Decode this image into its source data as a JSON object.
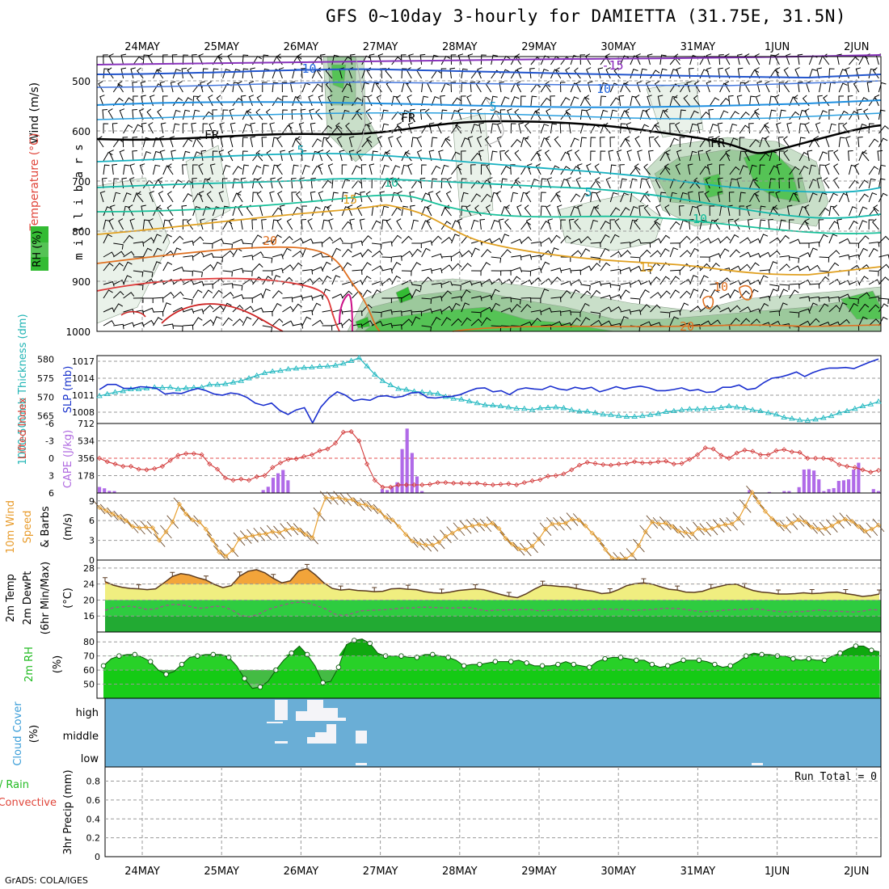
{
  "title": "GFS 0~10day 3-hourly for DAMIETTA (31.75E, 31.5N)",
  "credit": "GrADS: COLA/IGES",
  "colors": {
    "wind_lbl": "#000000",
    "temp_lbl": "#e0453a",
    "rh_lbl": "#22bb22",
    "thick_lbl": "#22b5b5",
    "slp_lbl": "#1a33cc",
    "lifted_lbl": "#e0453a",
    "cape_lbl": "#b06ae0",
    "wind10_lbl": "#e89b2a",
    "cloud_lbl": "#3a9dd8",
    "precip_rain_lbl": "#22bb22",
    "precip_conv_lbl": "#e0453a",
    "slp_line": "#1a2fcf",
    "thick_line": "#22b8c0",
    "cape_bar": "#b06ae8",
    "lifted_line": "#d23a3a",
    "wind_speed_line": "#e8a030",
    "temp_fill": "#f2a43a",
    "dew_fill": "#22bb22",
    "rh_fill": "#11cc11",
    "cloud_bg": "#6aaed6",
    "cloud_fill": "#f4f4f8"
  },
  "chart_data": {
    "type": "line",
    "x_dates": [
      "24MAY",
      "25MAY",
      "26MAY",
      "27MAY",
      "28MAY",
      "29MAY",
      "30MAY",
      "31MAY",
      "1JUN",
      "2JUN"
    ],
    "upper_air": {
      "title": "Upper air",
      "y_label": "m i l l i b a r s",
      "y_label_rh": "RH (%)",
      "y_label_temp": "Temperature (°C)",
      "y_label_wind": "Wind (m/s)",
      "pressure_ticks": [
        "500",
        "600",
        "700",
        "800",
        "900",
        "1000"
      ],
      "contour_labels": [
        {
          "text": "-10",
          "color": "#2266dd"
        },
        {
          "text": "-15",
          "color": "#8822bb"
        },
        {
          "text": "10",
          "color": "#2266dd"
        },
        {
          "text": "5",
          "color": "#1199cc"
        },
        {
          "text": "FR",
          "color": "#000000"
        },
        {
          "text": "FR",
          "color": "#000000"
        },
        {
          "text": "FR",
          "color": "#000000"
        },
        {
          "text": "5",
          "color": "#11aabb"
        },
        {
          "text": "10",
          "color": "#11bb99"
        },
        {
          "text": "5",
          "color": "#11aabb"
        },
        {
          "text": "10",
          "color": "#11bb99"
        },
        {
          "text": "15",
          "color": "#e0a020"
        },
        {
          "text": "20",
          "color": "#e07020"
        },
        {
          "text": "15",
          "color": "#e0a020"
        },
        {
          "text": "10",
          "color": "#e07020"
        },
        {
          "text": "20",
          "color": "#e07020"
        }
      ]
    },
    "slp_thickness": {
      "y_label_thick": "1000-500mb Thickness (dm)",
      "y_label_slp": "SLP (mb)",
      "thick_ticks": [
        "580",
        "575",
        "570",
        "565"
      ],
      "slp_ticks": [
        "1017",
        "1014",
        "1011",
        "1008"
      ],
      "slp_range": [
        1006,
        1018
      ],
      "thick_range": [
        563,
        581
      ],
      "slp": [
        1012.0,
        1012.9,
        1012.9,
        1012.2,
        1012.2,
        1012.5,
        1012.4,
        1012.2,
        1011.2,
        1011.4,
        1011.3,
        1011.8,
        1012.2,
        1011.8,
        1011.2,
        1011.0,
        1011.4,
        1011.2,
        1010.6,
        1009.6,
        1009.2,
        1009.6,
        1008.3,
        1007.6,
        1008.4,
        1008.8,
        1006.1,
        1008.9,
        1010.5,
        1011.6,
        1011.0,
        1010.0,
        1010.3,
        1010.1,
        1010.8,
        1010.9,
        1010.6,
        1010.8,
        1011.4,
        1011.5,
        1010.6,
        1010.5,
        1010.7,
        1010.8,
        1011.1,
        1011.7,
        1012.2,
        1012.3,
        1011.6,
        1011.8,
        1011.1,
        1012.0,
        1012.3,
        1012.1,
        1012.0,
        1012.6,
        1012.1,
        1011.9,
        1012.4,
        1012.1,
        1012.4,
        1011.6,
        1012.0,
        1012.5,
        1012.1,
        1012.4,
        1012.6,
        1012.3,
        1011.8,
        1011.8,
        1012.0,
        1012.3,
        1011.8,
        1012.0,
        1011.5,
        1011.6,
        1012.4,
        1012.4,
        1012.8,
        1012.0,
        1012.2,
        1013.2,
        1014.0,
        1014.2,
        1014.6,
        1015.1,
        1014.3,
        1015.0,
        1015.5,
        1015.8,
        1015.8,
        1015.9,
        1015.7,
        1016.3,
        1016.9,
        1017.4
      ],
      "thickness": [
        570.3,
        570.8,
        571.3,
        571.6,
        572.1,
        572.1,
        572.3,
        572.6,
        572.5,
        572.6,
        572.1,
        572.4,
        572.5,
        572.6,
        573.3,
        573.3,
        573.5,
        573.9,
        574.3,
        575.0,
        575.7,
        576.4,
        576.8,
        577.0,
        577.4,
        577.6,
        577.8,
        577.9,
        578.1,
        578.2,
        578.4,
        578.9,
        579.6,
        580.4,
        578.2,
        576.0,
        574.3,
        573.2,
        572.2,
        572.0,
        571.5,
        571.3,
        571.1,
        570.9,
        570.1,
        569.6,
        569.4,
        568.9,
        568.4,
        567.9,
        567.8,
        567.6,
        567.3,
        567.0,
        566.9,
        566.6,
        567.1,
        567.2,
        567.3,
        567.1,
        566.6,
        566.2,
        566.2,
        565.8,
        565.4,
        565.3,
        565.0,
        564.8,
        564.8,
        565.0,
        565.3,
        565.6,
        566.1,
        566.3,
        566.6,
        566.8,
        566.8,
        566.9,
        567.0,
        567.2,
        567.6,
        567.3,
        567.1,
        566.6,
        566.3,
        565.8,
        565.4,
        564.6,
        564.3,
        563.9,
        563.8,
        564.1,
        564.5,
        565.0,
        565.8,
        566.3,
        566.9,
        567.6,
        568.1,
        568.8
      ]
    },
    "cape_li": {
      "y_label_li": "Lifted Index",
      "y_label_cape": "CAPE (J/kg)",
      "li_ticks": [
        "-6",
        "-3",
        "0",
        "3",
        "6"
      ],
      "cape_ticks": [
        "712",
        "534",
        "356",
        "178"
      ],
      "li_range": [
        6,
        -6
      ],
      "cape_range": [
        0,
        712
      ],
      "lifted": [
        0.0,
        0.6,
        1.0,
        1.4,
        1.4,
        1.9,
        2.0,
        1.8,
        1.4,
        0.4,
        -0.5,
        -0.8,
        -0.8,
        -0.6,
        1.0,
        1.9,
        3.4,
        3.8,
        3.6,
        3.8,
        3.2,
        3.0,
        1.6,
        0.8,
        0.2,
        0.1,
        -0.3,
        -0.6,
        -1.3,
        -1.6,
        -2.6,
        -4.5,
        -4.6,
        -3.0,
        1.0,
        3.8,
        5.0,
        5.0,
        4.6,
        4.6,
        4.6,
        4.6,
        4.5,
        4.2,
        4.2,
        4.3,
        4.3,
        4.4,
        4.3,
        4.5,
        4.6,
        4.5,
        4.4,
        4.6,
        4.2,
        3.9,
        3.7,
        3.1,
        3.0,
        2.7,
        2.0,
        1.2,
        0.7,
        0.9,
        1.1,
        1.2,
        1.0,
        0.9,
        0.6,
        0.8,
        0.8,
        0.6,
        0.5,
        1.0,
        0.9,
        0.2,
        -0.6,
        -1.8,
        -1.6,
        -0.5,
        0.0,
        -0.9,
        -1.4,
        -1.2,
        -0.6,
        -0.6,
        -1.3,
        -1.5,
        -1.1,
        -1.0,
        0.0,
        0.0,
        0.0,
        0.2,
        1.1,
        1.4,
        1.6,
        2.0,
        2.4,
        2.1
      ],
      "cape": [
        62,
        48,
        22,
        20,
        0,
        0,
        0,
        0,
        0,
        0,
        0,
        0,
        0,
        0,
        0,
        0,
        0,
        0,
        0,
        0,
        0,
        0,
        0,
        0,
        0,
        0,
        0,
        0,
        0,
        0,
        0,
        0,
        0,
        30,
        64,
        156,
        202,
        236,
        130,
        0,
        0,
        0,
        0,
        0,
        0,
        0,
        0,
        0,
        0,
        0,
        0,
        0,
        0,
        0,
        0,
        0,
        0,
        40,
        30,
        60,
        110,
        450,
        660,
        410,
        170,
        20,
        0,
        0,
        0,
        0,
        0,
        0,
        0,
        0,
        0,
        0,
        0,
        0,
        0,
        0,
        0,
        0,
        0,
        0,
        0,
        0,
        0,
        0,
        0,
        0,
        0,
        0,
        0,
        0,
        0,
        0,
        0,
        0,
        0,
        0,
        0,
        0,
        0,
        0,
        0,
        0,
        0,
        0,
        0,
        0,
        0,
        0,
        0,
        0,
        0,
        0,
        0,
        0,
        0,
        0,
        0,
        0,
        0,
        0,
        0,
        0,
        0,
        0,
        0,
        0,
        0,
        30,
        0,
        0,
        0,
        10,
        0,
        0,
        20,
        20,
        0,
        60,
        240,
        244,
        230,
        140,
        20,
        40,
        50,
        124,
        130,
        140,
        240,
        310,
        0,
        0,
        40,
        20
      ]
    },
    "wind10m": {
      "y_label": "10m Wind Speed & Barbs (m/s)",
      "y_label_a": "10m Wind",
      "y_label_b": "Speed",
      "y_label_c": "& Barbs",
      "y_label_unit": "(m/s)",
      "ticks": [
        "9",
        "6",
        "3",
        "0"
      ],
      "range": [
        0,
        10.2
      ],
      "speed": [
        8.0,
        7.5,
        7.0,
        6.5,
        6.0,
        5.1,
        4.9,
        5.0,
        4.9,
        3.0,
        4.3,
        5.8,
        8.5,
        7.0,
        6.1,
        5.8,
        4.7,
        3.0,
        1.2,
        0.6,
        1.5,
        3.2,
        3.5,
        3.7,
        3.9,
        4.0,
        4.3,
        4.2,
        4.6,
        4.8,
        4.6,
        3.9,
        3.4,
        7.0,
        9.5,
        9.4,
        9.5,
        9.2,
        9.2,
        8.5,
        8.4,
        8.0,
        7.5,
        6.5,
        6.1,
        5.1,
        3.9,
        2.9,
        2.5,
        2.3,
        2.3,
        2.7,
        3.6,
        4.1,
        4.7,
        5.0,
        5.2,
        5.4,
        5.3,
        5.6,
        4.8,
        3.3,
        2.4,
        1.7,
        1.6,
        2.1,
        3.2,
        4.7,
        5.5,
        5.5,
        5.6,
        6.2,
        6.1,
        5.2,
        4.1,
        3.1,
        1.6,
        0.3,
        0.2,
        0.2,
        0.8,
        2.2,
        4.3,
        5.8,
        5.5,
        5.6,
        5.1,
        4.4,
        4.2,
        4.0,
        4.8,
        4.6,
        4.8,
        5.2,
        5.4,
        5.5,
        6.3,
        8.2,
        10.3,
        8.8,
        7.4,
        6.3,
        5.4,
        5.1,
        5.6,
        6.1,
        5.8,
        5.0,
        4.7,
        4.8,
        5.2,
        5.8,
        6.2,
        5.9,
        5.1,
        4.4,
        4.7,
        5.3
      ]
    },
    "temp2m": {
      "y_label_a": "2m Temp",
      "y_label_b": "2m DewPt",
      "y_label_c": "(6hr Min/Max)",
      "y_label_unit": "(°C)",
      "ticks": [
        "28",
        "24",
        "20",
        "16"
      ],
      "range": [
        12,
        30
      ],
      "temp": [
        24.6,
        23.7,
        23.2,
        22.9,
        22.8,
        22.6,
        22.8,
        24.3,
        25.9,
        26.6,
        26.3,
        25.6,
        25.0,
        23.9,
        23.1,
        23.6,
        26.0,
        27.2,
        27.6,
        26.8,
        25.4,
        24.3,
        24.8,
        27.3,
        27.9,
        26.3,
        24.3,
        22.9,
        22.5,
        22.7,
        22.4,
        22.3,
        22.1,
        22.2,
        22.8,
        22.9,
        22.7,
        22.6,
        22.1,
        21.8,
        21.7,
        22.0,
        22.4,
        22.6,
        22.8,
        22.6,
        22.0,
        21.4,
        20.9,
        20.6,
        21.5,
        22.7,
        23.7,
        23.6,
        23.4,
        23.3,
        22.9,
        22.5,
        22.2,
        21.6,
        21.8,
        22.6,
        23.6,
        24.1,
        24.3,
        24.0,
        23.3,
        22.7,
        22.5,
        22.0,
        21.9,
        22.2,
        22.9,
        23.4,
        23.9,
        24.0,
        23.1,
        22.4,
        22.0,
        21.8,
        21.5,
        21.5,
        21.6,
        21.8,
        21.6,
        21.7,
        21.9,
        22.0,
        21.6,
        21.3,
        20.9,
        21.1,
        21.5
      ],
      "dew": [
        17.4,
        18.1,
        18.3,
        18.5,
        18.1,
        17.6,
        17.8,
        18.6,
        18.9,
        18.8,
        18.4,
        17.9,
        18.1,
        18.5,
        18.3,
        17.4,
        16.1,
        15.8,
        16.4,
        17.5,
        18.2,
        18.8,
        19.3,
        19.5,
        19.2,
        18.5,
        17.7,
        16.5,
        16.1,
        16.6,
        17.3,
        17.4,
        17.5,
        17.6,
        17.8,
        18.0,
        18.0,
        18.2,
        18.2,
        18.1,
        18.0,
        18.0,
        18.1,
        18.1,
        17.6,
        17.3,
        17.5,
        17.5,
        17.6,
        17.6,
        17.6,
        17.3,
        17.4,
        17.6,
        17.6,
        17.4,
        17.5,
        17.6,
        17.8,
        17.7,
        17.7,
        17.7,
        17.4,
        17.5,
        17.6,
        17.8,
        17.9,
        17.9,
        17.7,
        17.4,
        17.1,
        17.1,
        17.3,
        17.5,
        17.6,
        17.6,
        17.8,
        17.7,
        17.4,
        17.2,
        17.0,
        17.1,
        17.1,
        17.3,
        17.5,
        17.3,
        17.2,
        17.1,
        17.0,
        17.2,
        17.6,
        17.5
      ]
    },
    "rh2m": {
      "y_label": "2m RH",
      "y_label_unit": "(%)",
      "ticks": [
        "80",
        "70",
        "60",
        "50"
      ],
      "range": [
        40,
        87
      ],
      "rh": [
        63,
        68,
        70,
        71,
        71,
        69,
        66,
        60,
        57,
        59,
        64,
        69,
        70,
        71,
        71,
        71,
        69,
        63,
        54,
        47,
        48,
        52,
        60,
        67,
        72,
        77,
        71,
        63,
        51,
        52,
        62,
        78,
        81,
        82,
        79,
        72,
        70,
        70,
        70,
        69,
        69,
        71,
        71,
        70,
        69,
        67,
        63,
        64,
        64,
        65,
        66,
        66,
        66,
        67,
        65,
        63,
        63,
        63,
        64,
        66,
        64,
        63,
        62,
        66,
        68,
        69,
        69,
        68,
        67,
        67,
        64,
        62,
        63,
        65,
        67,
        67,
        67,
        66,
        64,
        62,
        63,
        66,
        70,
        72,
        71,
        71,
        70,
        70,
        68,
        67,
        68,
        67,
        67,
        70,
        72,
        75,
        77,
        77,
        74,
        73
      ]
    },
    "cloud": {
      "y_label_a": "Cloud Cover",
      "y_label_unit": "(%)",
      "levels": [
        "high",
        "middle",
        "low"
      ]
    },
    "precip": {
      "y_label_a": "Total / Rain",
      "y_label_b": "Convective",
      "y_label_c": "3hr Precip (mm)",
      "ticks": [
        "0.8",
        "0.6",
        "0.4",
        "0.2",
        "0"
      ],
      "range": [
        0,
        0.95
      ],
      "run_total": "Run Total = 0"
    }
  }
}
